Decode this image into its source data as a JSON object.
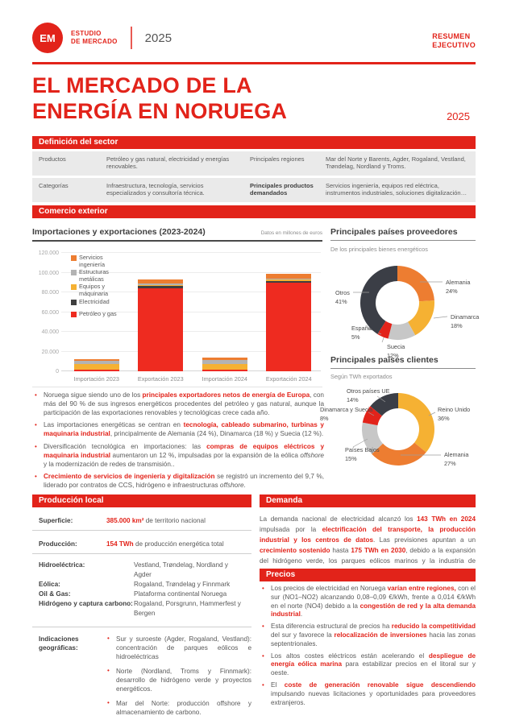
{
  "colors": {
    "brand_red": "#E2231A",
    "chart_red": "#EE2B20",
    "chart_dark": "#3F3F3F",
    "chart_yellow": "#F5B133",
    "chart_gray": "#B3B3B3",
    "chart_orange": "#ED7D31",
    "donut_dark": "#3B3E46",
    "donut_gray": "#C7C7C7",
    "table_bg": "#EAEAEA"
  },
  "header": {
    "logo": "EM",
    "program_line1": "ESTUDIO",
    "program_line2": "DE MERCADO",
    "year": "2025",
    "right_line1": "RESUMEN",
    "right_line2": "EJECUTIVO"
  },
  "title": {
    "line1": "EL MERCADO DE LA",
    "line2": "ENERGÍA EN NORUEGA",
    "year": "2025"
  },
  "definicion": {
    "heading": "Definición del sector",
    "rows": [
      {
        "label1": "Productos",
        "value1": "Petróleo y gas natural, electricidad y energías renovables.",
        "label2": "Principales regiones",
        "label2_bold": false,
        "value2": "Mar del Norte y Barents, Agder, Rogaland, Vestland, Trøndelag, Nordland y Troms."
      },
      {
        "label1": "Categorías",
        "value1": "Infraestructura, tecnología, servicios especializados y consultoría técnica.",
        "label2": "Principales productos demandados",
        "label2_bold": true,
        "value2": "Servicios ingeniería, equipos red eléctrica, instrumentos industriales, soluciones digitalización…"
      }
    ]
  },
  "comercio": {
    "heading": "Comercio exterior",
    "bullets": [
      [
        {
          "t": "Noruega sigue siendo uno de los "
        },
        {
          "t": "principales exportadores netos de energía de Europa",
          "red": true
        },
        {
          "t": ", con más del 90 % de sus ingresos energéticos procedentes del petróleo y gas natural, aunque la participación de las exportaciones renovables y tecnológicas crece cada año."
        }
      ],
      [
        {
          "t": "Las importaciones energéticas se centran en "
        },
        {
          "t": "tecnología, cableado submarino, turbinas y maquinaria industrial",
          "red": true
        },
        {
          "t": ", principalmente de Alemania (24 %), Dinamarca (18 %) y Suecia (12 %)."
        }
      ],
      [
        {
          "t": "Diversificación tecnológica en importaciones: las "
        },
        {
          "t": "compras de equipos eléctricos y maquinaria industrial",
          "red": true
        },
        {
          "t": " aumentaron un 12 %, impulsadas por la expansión de la eólica "
        },
        {
          "t": "offshore",
          "i": true
        },
        {
          "t": " y la modernización de redes de transmisión.."
        }
      ],
      [
        {
          "t": "Crecimiento de servicios de ingeniería y digitalización",
          "red": true
        },
        {
          "t": " se registró un incremento del 9,7 %, liderado por contratos de CCS, hidrógeno e infraestructuras "
        },
        {
          "t": "offshore",
          "i": true
        },
        {
          "t": "."
        }
      ]
    ]
  },
  "chart_data": [
    {
      "type": "bar",
      "title": "Importaciones y exportaciones (2023-2024)",
      "note": "Datos en millones de euros",
      "categories": [
        "Importación 2023",
        "Exportación 2023",
        "Importación 2024",
        "Exportación 2024"
      ],
      "series": [
        {
          "name": "Petróleo y gas",
          "color": "#EE2B20",
          "values": [
            1500,
            84000,
            1600,
            89500
          ]
        },
        {
          "name": "Electricidad",
          "color": "#3F3F3F",
          "values": [
            400,
            2500,
            400,
            2300
          ]
        },
        {
          "name": "Equipos y máquinaria",
          "color": "#F5B133",
          "values": [
            5200,
            1200,
            5600,
            1400
          ]
        },
        {
          "name": "Estructuras metálicas",
          "color": "#B3B3B3",
          "values": [
            3400,
            900,
            3700,
            900
          ]
        },
        {
          "name": "Servicios ingeniería",
          "color": "#ED7D31",
          "values": [
            2000,
            4500,
            2200,
            5000
          ]
        }
      ],
      "ylim": [
        0,
        120000
      ],
      "ytick_step": 20000,
      "grid": true,
      "legend_position": "top-left"
    },
    {
      "type": "donut",
      "title": "Principales países proveedores",
      "subtitle": "De los principales bienes energéticos",
      "slices": [
        {
          "label": "Alemania",
          "pct": 24,
          "color": "#ED7D31"
        },
        {
          "label": "Dinamarca",
          "pct": 18,
          "color": "#F5B133"
        },
        {
          "label": "Suecia",
          "pct": 12,
          "color": "#C7C7C7"
        },
        {
          "label": "España",
          "pct": 5,
          "color": "#E2231A"
        },
        {
          "label": "Otros",
          "pct": 41,
          "color": "#3B3E46"
        }
      ]
    },
    {
      "type": "donut",
      "title": "Principales países clientes",
      "subtitle": "Según TWh exportados",
      "slices": [
        {
          "label": "Reino Unido",
          "pct": 36,
          "color": "#F5B133"
        },
        {
          "label": "Alemania",
          "pct": 27,
          "color": "#ED7D31"
        },
        {
          "label": "Países Bajos",
          "pct": 15,
          "color": "#C7C7C7"
        },
        {
          "label": "Dinamarca y Suecia",
          "pct": 8,
          "color": "#E2231A"
        },
        {
          "label": "Otros países UE",
          "pct": 14,
          "color": "#3B3E46"
        }
      ]
    }
  ],
  "produccion": {
    "heading": "Producción local",
    "stats": [
      {
        "label": "Superficie:",
        "highlight": "385.000 km²",
        "rest": " de territorio nacional"
      },
      {
        "label": "Producción:",
        "highlight": "154 TWh",
        "rest": " de producción energética total"
      }
    ],
    "areas": [
      {
        "label": "Hidroeléctrica:",
        "value": "Vestland, Trøndelag, Nordland y Agder"
      },
      {
        "label": "Eólica:",
        "value": "Rogaland, Trøndelag y Finnmark"
      },
      {
        "label": "Oil & Gas:",
        "value": "Plataforma continental Noruega"
      },
      {
        "label": "Hidrógeno y captura carbono:",
        "value": "Rogaland, Porsgrunn, Hammerfest y Bergen"
      }
    ],
    "geo_label": "Indicaciones geográficas:",
    "geo_bullets": [
      "Sur y suroeste (Agder, Rogaland, Vestland): concentración de parques eólicos e hidroeléctricas",
      "Norte (Nordland, Troms y Finnmark): desarrollo de hidrógeno verde y proyectos energéticos.",
      "Mar del Norte: producción offshore y almacenamiento de carbono."
    ]
  },
  "demanda": {
    "heading": "Demanda",
    "paragraph": [
      {
        "t": "La demanda nacional de electricidad alcanzó los "
      },
      {
        "t": "143 TWh en 2024",
        "red": true
      },
      {
        "t": " impulsada por la "
      },
      {
        "t": "electrificación del transporte, la producción industrial y los centros de datos",
        "red": true
      },
      {
        "t": ". Las previsiones apuntan a un "
      },
      {
        "t": "crecimiento sostenido",
        "red": true
      },
      {
        "t": " hasta "
      },
      {
        "t": "175 TWh en 2030",
        "red": true
      },
      {
        "t": ", debido a la expansión del hidrógeno verde, los parques eólicos marinos y la industria de baterías."
      }
    ]
  },
  "precios": {
    "heading": "Precios",
    "bullets": [
      [
        {
          "t": "Los precios de electricidad en Noruega "
        },
        {
          "t": "varían entre regiones,",
          "red": true
        },
        {
          "t": " con el sur (NO1–NO2) alcanzando 0,08–0,09 €/kWh, frente a 0,014 €/kWh en el norte (NO4) debido a la "
        },
        {
          "t": "congestión de red y la alta demanda industrial",
          "red": true
        },
        {
          "t": "."
        }
      ],
      [
        {
          "t": "Esta diferencia estructural de precios ha "
        },
        {
          "t": "reducido la competitividad",
          "red": true
        },
        {
          "t": " del sur y favorece la "
        },
        {
          "t": "relocalización de inversiones",
          "red": true
        },
        {
          "t": " hacia las zonas septentrionales."
        }
      ],
      [
        {
          "t": "Los altos costes eléctricos están acelerando el "
        },
        {
          "t": "despliegue de energía eólica marina",
          "red": true
        },
        {
          "t": " para estabilizar precios en el litoral sur y oeste."
        }
      ],
      [
        {
          "t": "El "
        },
        {
          "t": "coste de generación renovable sigue descendiendo",
          "red": true
        },
        {
          "t": " impulsando nuevas licitaciones y oportunidades para proveedores extranjeros."
        }
      ]
    ]
  }
}
